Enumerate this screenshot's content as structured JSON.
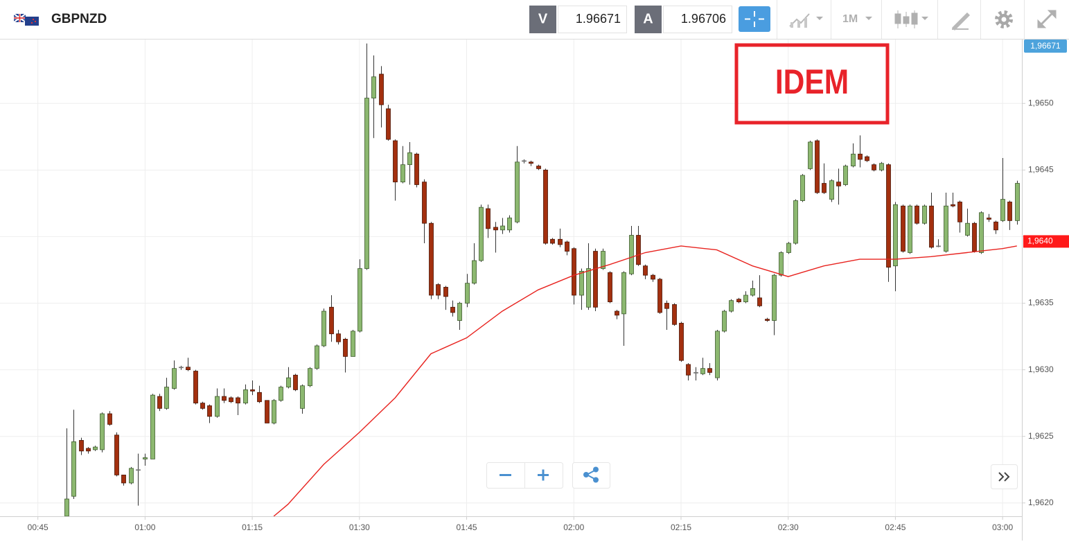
{
  "toolbar": {
    "symbol": "GBPNZD",
    "bid_label": "V",
    "bid": 1.96671,
    "ask_label": "A",
    "ask": 1.96706,
    "timeframe": "1M"
  },
  "chart_data": {
    "type": "candlestick",
    "annotation": "IDEM",
    "up_color": "#8cb870",
    "down_color": "#a3300f",
    "grid": true,
    "xlim": [
      39.7,
      182.7
    ],
    "ylim": [
      1.9619,
      1.96548
    ],
    "xticks": [
      {
        "value": 45,
        "label": "00:45"
      },
      {
        "value": 60,
        "label": "01:00"
      },
      {
        "value": 75,
        "label": "01:15"
      },
      {
        "value": 90,
        "label": "01:30"
      },
      {
        "value": 105,
        "label": "01:45"
      },
      {
        "value": 120,
        "label": "02:00"
      },
      {
        "value": 135,
        "label": "02:15"
      },
      {
        "value": 150,
        "label": "02:30"
      },
      {
        "value": 165,
        "label": "02:45"
      },
      {
        "value": 180,
        "label": "03:00"
      }
    ],
    "yticks": [
      {
        "value": 1.962,
        "label": "1,9620"
      },
      {
        "value": 1.9625,
        "label": "1,9625"
      },
      {
        "value": 1.963,
        "label": "1,9630"
      },
      {
        "value": 1.9635,
        "label": "1,9635"
      },
      {
        "value": 1.964,
        "label": "1,9640",
        "color": "#ff1a1a"
      },
      {
        "value": 1.9645,
        "label": "1,9645"
      },
      {
        "value": 1.965,
        "label": "1,9650"
      }
    ],
    "price_badge": {
      "value": 1.96671,
      "label": "1,96671",
      "color": "#4da3dc"
    },
    "x": [
      49,
      50,
      51,
      52,
      53,
      54,
      55,
      56,
      57,
      58,
      59,
      60,
      61,
      62,
      63,
      64,
      65,
      66,
      67,
      68,
      69,
      70,
      71,
      72,
      73,
      74,
      75,
      76,
      77,
      78,
      79,
      80,
      81,
      82,
      83,
      84,
      85,
      86,
      87,
      88,
      89,
      90,
      91,
      92,
      93,
      94,
      95,
      96,
      97,
      98,
      99,
      100,
      101,
      102,
      103,
      104,
      105,
      106,
      107,
      108,
      109,
      110,
      111,
      112,
      113,
      114,
      115,
      116,
      117,
      118,
      119,
      120,
      121,
      122,
      123,
      124,
      125,
      126,
      127,
      128,
      129,
      130,
      131,
      132,
      133,
      134,
      135,
      136,
      137,
      138,
      139,
      140,
      141,
      142,
      143,
      144,
      145,
      146,
      147,
      148,
      149,
      150,
      151,
      152,
      153,
      154,
      155,
      156,
      157,
      158,
      159,
      160,
      161,
      162,
      163,
      164,
      165,
      166,
      167,
      168,
      169,
      170,
      171,
      172,
      173,
      174,
      175,
      176,
      177,
      178,
      179,
      180,
      181,
      182
    ],
    "open": [
      1.9619,
      1.96205,
      1.96247,
      1.96241,
      1.9624,
      1.9624,
      1.96267,
      1.96251,
      1.96221,
      1.96215,
      1.96225,
      1.96233,
      1.96233,
      1.9628,
      1.96271,
      1.96286,
      1.96302,
      1.96302,
      1.96299,
      1.96275,
      1.96273,
      1.96265,
      1.9628,
      1.96279,
      1.96279,
      1.96275,
      1.96285,
      1.96283,
      1.96277,
      1.9626,
      1.96277,
      1.96287,
      1.96296,
      1.96271,
      1.96288,
      1.96301,
      1.96318,
      1.96347,
      1.96327,
      1.96323,
      1.9631,
      1.96329,
      1.96376,
      1.96504,
      1.96522,
      1.96496,
      1.96472,
      1.96441,
      1.96454,
      1.96462,
      1.96441,
      1.9641,
      1.96364,
      1.96362,
      1.96347,
      1.96337,
      1.9635,
      1.96365,
      1.96382,
      1.96421,
      1.96407,
      1.96405,
      1.96405,
      1.96411,
      1.96457,
      1.96456,
      1.96453,
      1.9645,
      1.96398,
      1.96398,
      1.96396,
      1.96391,
      1.96356,
      1.96347,
      1.96389,
      1.96376,
      1.96373,
      1.96344,
      1.96342,
      1.96372,
      1.96401,
      1.96378,
      1.96371,
      1.96368,
      1.9635,
      1.96349,
      1.96335,
      1.96304,
      1.96298,
      1.96297,
      1.96301,
      1.96294,
      1.96329,
      1.96344,
      1.96353,
      1.96351,
      1.96356,
      1.96354,
      1.96338,
      1.96337,
      1.96371,
      1.96388,
      1.96395,
      1.96427,
      1.96451,
      1.96472,
      1.9644,
      1.96428,
      1.96441,
      1.96439,
      1.96453,
      1.96462,
      1.9646,
      1.96454,
      1.9645,
      1.96454,
      1.96378,
      1.96423,
      1.96388,
      1.96423,
      1.9641,
      1.96423,
      1.96393,
      1.96389,
      1.96424,
      1.96426,
      1.96401,
      1.9641,
      1.96388,
      1.96414,
      1.96411,
      1.96412,
      1.96426,
      1.96412
    ],
    "high": [
      1.96256,
      1.9627,
      1.96249,
      1.96242,
      1.96243,
      1.96268,
      1.96269,
      1.96253,
      1.96221,
      1.96227,
      1.96237,
      1.96237,
      1.96282,
      1.96282,
      1.96294,
      1.96307,
      1.96303,
      1.96309,
      1.963,
      1.96276,
      1.96274,
      1.96286,
      1.96286,
      1.9628,
      1.9628,
      1.96289,
      1.96292,
      1.96288,
      1.96277,
      1.96278,
      1.96288,
      1.96302,
      1.96297,
      1.96289,
      1.96302,
      1.96319,
      1.96346,
      1.96356,
      1.9633,
      1.96324,
      1.9633,
      1.96383,
      1.96545,
      1.96536,
      1.96528,
      1.96499,
      1.96473,
      1.96468,
      1.96471,
      1.96463,
      1.96443,
      1.96411,
      1.96365,
      1.96363,
      1.96352,
      1.96351,
      1.96372,
      1.96395,
      1.96424,
      1.96424,
      1.96411,
      1.96414,
      1.96416,
      1.96468,
      1.96458,
      1.96457,
      1.96454,
      1.96451,
      1.96399,
      1.96406,
      1.96397,
      1.96392,
      1.96376,
      1.96395,
      1.96391,
      1.96391,
      1.96374,
      1.96345,
      1.96374,
      1.96408,
      1.96408,
      1.96379,
      1.96372,
      1.96369,
      1.96352,
      1.9635,
      1.96336,
      1.96305,
      1.96302,
      1.96309,
      1.96305,
      1.9633,
      1.96345,
      1.96353,
      1.96354,
      1.96359,
      1.96367,
      1.96371,
      1.96339,
      1.96372,
      1.96389,
      1.96396,
      1.96428,
      1.96447,
      1.96472,
      1.96473,
      1.96455,
      1.96443,
      1.96451,
      1.96454,
      1.9647,
      1.96476,
      1.96461,
      1.96455,
      1.96456,
      1.96455,
      1.96426,
      1.96424,
      1.96424,
      1.96424,
      1.96424,
      1.96433,
      1.96398,
      1.96433,
      1.96433,
      1.96427,
      1.96421,
      1.96411,
      1.96419,
      1.96417,
      1.96412,
      1.96459,
      1.96427,
      1.96442
    ],
    "low": [
      1.96185,
      1.96203,
      1.96236,
      1.96237,
      1.96239,
      1.96238,
      1.96258,
      1.9622,
      1.96213,
      1.96214,
      1.96198,
      1.96228,
      1.96233,
      1.96269,
      1.9627,
      1.96285,
      1.963,
      1.96299,
      1.96274,
      1.9627,
      1.9626,
      1.96264,
      1.96275,
      1.96275,
      1.96266,
      1.96274,
      1.96281,
      1.96275,
      1.9626,
      1.96259,
      1.96276,
      1.96286,
      1.96284,
      1.96267,
      1.96287,
      1.963,
      1.96317,
      1.96321,
      1.96319,
      1.96298,
      1.9631,
      1.96328,
      1.96375,
      1.96474,
      1.96482,
      1.96472,
      1.96427,
      1.9644,
      1.96439,
      1.96437,
      1.96395,
      1.96353,
      1.96353,
      1.96345,
      1.9634,
      1.9633,
      1.96347,
      1.96364,
      1.96381,
      1.96399,
      1.96388,
      1.96402,
      1.96403,
      1.9641,
      1.96455,
      1.96453,
      1.9645,
      1.96394,
      1.96394,
      1.96392,
      1.96386,
      1.96349,
      1.96345,
      1.96345,
      1.96344,
      1.96375,
      1.9635,
      1.96338,
      1.96318,
      1.96371,
      1.96378,
      1.96368,
      1.96366,
      1.96342,
      1.9633,
      1.96333,
      1.96306,
      1.96292,
      1.96292,
      1.96296,
      1.96296,
      1.96292,
      1.96328,
      1.96343,
      1.9635,
      1.9635,
      1.96355,
      1.96347,
      1.96336,
      1.96326,
      1.9637,
      1.96387,
      1.96394,
      1.96426,
      1.9645,
      1.96432,
      1.96432,
      1.96426,
      1.96424,
      1.96438,
      1.96452,
      1.96452,
      1.96456,
      1.96449,
      1.96449,
      1.96366,
      1.96359,
      1.96388,
      1.96387,
      1.96409,
      1.96409,
      1.96391,
      1.96392,
      1.96388,
      1.96422,
      1.96403,
      1.964,
      1.96388,
      1.96387,
      1.96411,
      1.96402,
      1.96411,
      1.96405,
      1.96409
    ],
    "close": [
      1.96203,
      1.96246,
      1.96239,
      1.96239,
      1.96242,
      1.96267,
      1.96259,
      1.96221,
      1.96215,
      1.96226,
      1.96225,
      1.96234,
      1.96281,
      1.96271,
      1.96287,
      1.96301,
      1.96302,
      1.963,
      1.96275,
      1.96271,
      1.96265,
      1.9628,
      1.96277,
      1.96276,
      1.96275,
      1.96285,
      1.96284,
      1.96276,
      1.9626,
      1.96277,
      1.96287,
      1.96294,
      1.96285,
      1.96288,
      1.96301,
      1.96318,
      1.96344,
      1.96327,
      1.96321,
      1.9631,
      1.96329,
      1.96376,
      1.96504,
      1.9652,
      1.96499,
      1.96473,
      1.96441,
      1.96454,
      1.96463,
      1.96439,
      1.9641,
      1.96356,
      1.96356,
      1.96355,
      1.96343,
      1.9635,
      1.96365,
      1.96382,
      1.96422,
      1.96406,
      1.96405,
      1.96408,
      1.96414,
      1.96456,
      1.96457,
      1.96455,
      1.96451,
      1.96395,
      1.96395,
      1.96394,
      1.96389,
      1.96356,
      1.96374,
      1.96376,
      1.96347,
      1.96389,
      1.96351,
      1.96341,
      1.96373,
      1.96401,
      1.96379,
      1.96371,
      1.96368,
      1.96343,
      1.96346,
      1.96334,
      1.96307,
      1.96296,
      1.96298,
      1.96301,
      1.96298,
      1.96329,
      1.96344,
      1.96352,
      1.96351,
      1.96356,
      1.96361,
      1.96348,
      1.96337,
      1.96371,
      1.96388,
      1.96395,
      1.96427,
      1.96446,
      1.96471,
      1.96433,
      1.96433,
      1.96442,
      1.96438,
      1.96453,
      1.96462,
      1.96458,
      1.96457,
      1.9645,
      1.96455,
      1.96377,
      1.96424,
      1.96389,
      1.96423,
      1.9641,
      1.96423,
      1.96392,
      1.96393,
      1.96423,
      1.96423,
      1.96411,
      1.9641,
      1.96389,
      1.96418,
      1.96413,
      1.96405,
      1.96428,
      1.96412,
      1.9644
    ],
    "overlays": [
      {
        "type": "line",
        "color": "#e8231f",
        "x": [
          78,
          80,
          85,
          90,
          95,
          100,
          105,
          110,
          115,
          120,
          125,
          130,
          135,
          140,
          145,
          150,
          155,
          160,
          165,
          170,
          175,
          180,
          182
        ],
        "values": [
          1.9619,
          1.96199,
          1.96229,
          1.96253,
          1.96279,
          1.96312,
          1.96324,
          1.96344,
          1.9636,
          1.96371,
          1.96379,
          1.96388,
          1.96393,
          1.9639,
          1.96378,
          1.9637,
          1.96378,
          1.96383,
          1.96383,
          1.96385,
          1.96388,
          1.96391,
          1.96393
        ]
      }
    ]
  }
}
